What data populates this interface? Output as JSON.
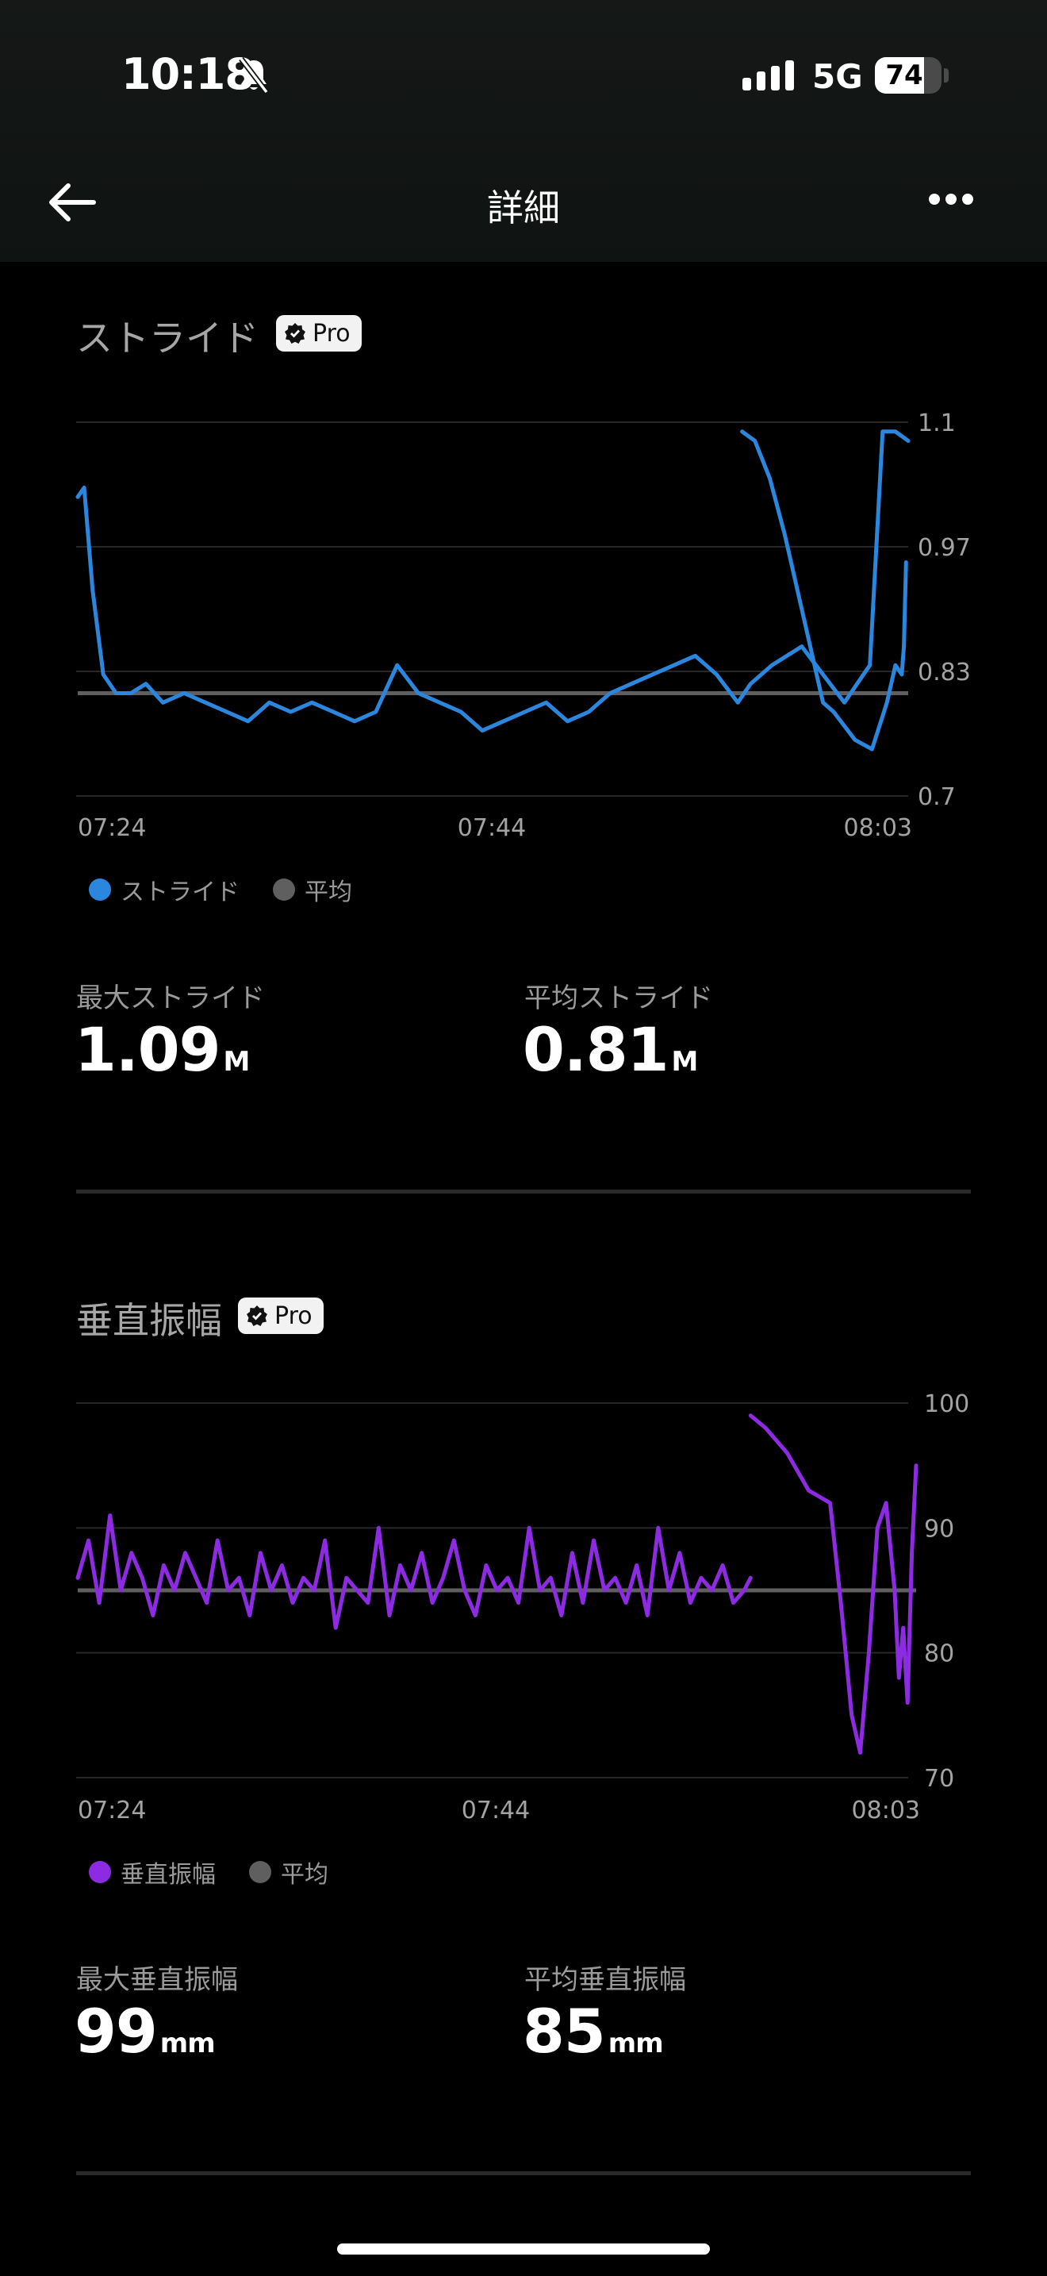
{
  "status_bar": {
    "time": "10:18",
    "network": "5G",
    "battery": "74",
    "battery_level": 0.74
  },
  "nav": {
    "title": "詳細"
  },
  "stride": {
    "title": "ストライド",
    "badge": "Pro",
    "legend_series": "ストライド",
    "legend_avg": "平均",
    "max_label": "最大ストライド",
    "max_value": "1.09",
    "max_unit": "M",
    "avg_label": "平均ストライド",
    "avg_value": "0.81",
    "avg_unit": "M"
  },
  "vertical": {
    "title": "垂直振幅",
    "badge": "Pro",
    "legend_series": "垂直振幅",
    "legend_avg": "平均",
    "max_label": "最大垂直振幅",
    "max_value": "99",
    "max_unit": "mm",
    "avg_label": "平均垂直振幅",
    "avg_value": "85",
    "avg_unit": "mm"
  },
  "colors": {
    "stride": "#2b86dd",
    "vertical": "#8d2be2",
    "average": "#5f5f5f"
  },
  "chart_data": [
    {
      "type": "line",
      "title": "ストライド",
      "xlabel": "",
      "ylabel": "",
      "x_ticks": [
        "07:24",
        "07:44",
        "08:03"
      ],
      "y_ticks": [
        "1.1",
        "0.97",
        "0.83",
        "0.7"
      ],
      "ylim": [
        0.7,
        1.1
      ],
      "average": 0.81,
      "series": [
        {
          "name": "ストライド",
          "color": "#2b86dd",
          "x": [
            0,
            0.3,
            0.7,
            1.2,
            1.8,
            2.5,
            3.2,
            4,
            5,
            6,
            7,
            8,
            9,
            10,
            11,
            12,
            13,
            14,
            15,
            16,
            17,
            18,
            19,
            20,
            21,
            22,
            23,
            24,
            25,
            26,
            27,
            28,
            29,
            30,
            31,
            31.6,
            32.6,
            34,
            36,
            36.6,
            37.2,
            37.8,
            38.4,
            39
          ],
          "values": [
            1.02,
            1.03,
            0.92,
            0.83,
            0.81,
            0.81,
            0.82,
            0.8,
            0.81,
            0.8,
            0.79,
            0.78,
            0.8,
            0.79,
            0.8,
            0.79,
            0.78,
            0.79,
            0.84,
            0.81,
            0.8,
            0.79,
            0.77,
            0.78,
            0.79,
            0.8,
            0.78,
            0.79,
            0.81,
            0.82,
            0.83,
            0.84,
            0.85,
            0.83,
            0.8,
            0.82,
            0.84,
            0.86,
            0.8,
            0.82,
            0.84,
            1.09,
            1.09,
            1.08
          ]
        },
        {
          "name": "",
          "color": "#2b86dd",
          "x": [
            31.2,
            31.8,
            32.5,
            33.2,
            34.0,
            34.5,
            35.0,
            35.5,
            36.5,
            37.3,
            38.0,
            38.4,
            38.7,
            38.8,
            38.9
          ],
          "values": [
            1.09,
            1.08,
            1.04,
            0.98,
            0.9,
            0.85,
            0.8,
            0.79,
            0.76,
            0.75,
            0.8,
            0.84,
            0.83,
            0.86,
            0.95
          ]
        }
      ]
    },
    {
      "type": "line",
      "title": "垂直振幅",
      "xlabel": "",
      "ylabel": "",
      "x_ticks": [
        "07:24",
        "07:44",
        "08:03"
      ],
      "y_ticks": [
        "100",
        "90",
        "80",
        "70"
      ],
      "ylim": [
        70,
        100
      ],
      "average": 85,
      "series": [
        {
          "name": "垂直振幅",
          "color": "#8d2be2",
          "x": [
            0,
            0.5,
            1,
            1.5,
            2,
            2.5,
            3,
            3.5,
            4,
            4.5,
            5,
            5.5,
            6,
            6.5,
            7,
            7.5,
            8,
            8.5,
            9,
            9.5,
            10,
            10.5,
            11,
            11.5,
            12,
            12.5,
            13,
            13.5,
            14,
            14.5,
            15,
            15.5,
            16,
            16.5,
            17,
            17.5,
            18,
            18.5,
            19,
            19.5,
            20,
            20.5,
            21,
            21.5,
            22,
            22.5,
            23,
            23.5,
            24,
            24.5,
            25,
            25.5,
            26,
            26.5,
            27,
            27.5,
            28,
            28.5,
            29,
            29.5,
            30,
            30.5,
            31,
            31.3
          ],
          "values": [
            86,
            89,
            84,
            91,
            85,
            88,
            86,
            83,
            87,
            85,
            88,
            86,
            84,
            89,
            85,
            86,
            83,
            88,
            85,
            87,
            84,
            86,
            85,
            89,
            82,
            86,
            85,
            84,
            90,
            83,
            87,
            85,
            88,
            84,
            86,
            89,
            85,
            83,
            87,
            85,
            86,
            84,
            90,
            85,
            86,
            83,
            88,
            84,
            89,
            85,
            86,
            84,
            87,
            83,
            90,
            85,
            88,
            84,
            86,
            85,
            87,
            84,
            85,
            86
          ]
        },
        {
          "name": "",
          "color": "#8d2be2",
          "x": [
            31.3,
            32,
            33,
            34,
            35,
            35.5,
            36,
            36.4,
            36.8,
            37.2,
            37.6,
            38,
            38.2,
            38.4,
            38.6,
            38.8,
            39
          ],
          "values": [
            99,
            98,
            96,
            93,
            92,
            84,
            75,
            72,
            80,
            90,
            92,
            85,
            78,
            82,
            76,
            88,
            95
          ]
        }
      ]
    }
  ]
}
